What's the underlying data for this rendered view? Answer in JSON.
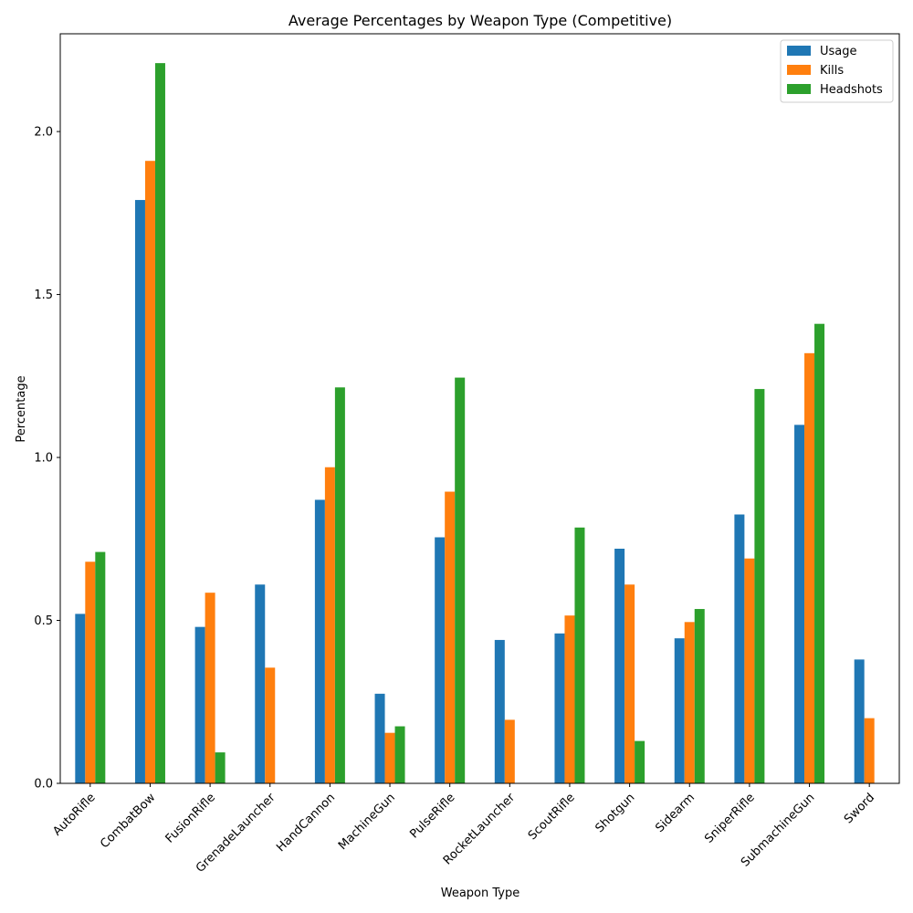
{
  "chart_data": {
    "type": "bar",
    "title": "Average Percentages by Weapon Type (Competitive)",
    "xlabel": "Weapon Type",
    "ylabel": "Percentage",
    "ylim": [
      0,
      2.3
    ],
    "yticks": [
      "0.0",
      "0.5",
      "1.0",
      "1.5",
      "2.0"
    ],
    "grid": false,
    "legend_position": "top-right",
    "categories": [
      "AutoRifle",
      "CombatBow",
      "FusionRifle",
      "GrenadeLauncher",
      "HandCannon",
      "MachineGun",
      "PulseRifle",
      "RocketLauncher",
      "ScoutRifle",
      "Shotgun",
      "Sidearm",
      "SniperRifle",
      "SubmachineGun",
      "Sword"
    ],
    "series": [
      {
        "name": "Usage",
        "color": "#1f77b4",
        "values": [
          0.52,
          1.79,
          0.48,
          0.61,
          0.87,
          0.275,
          0.755,
          0.44,
          0.46,
          0.72,
          0.445,
          0.825,
          1.1,
          0.38
        ]
      },
      {
        "name": "Kills",
        "color": "#ff7f0e",
        "values": [
          0.68,
          1.91,
          0.585,
          0.355,
          0.97,
          0.155,
          0.895,
          0.195,
          0.515,
          0.61,
          0.495,
          0.69,
          1.32,
          0.2
        ]
      },
      {
        "name": "Headshots",
        "color": "#2ca02c",
        "values": [
          0.71,
          2.21,
          0.095,
          0.0,
          1.215,
          0.175,
          1.245,
          0.0,
          0.785,
          0.13,
          0.535,
          1.21,
          1.41,
          0.0
        ]
      }
    ]
  }
}
